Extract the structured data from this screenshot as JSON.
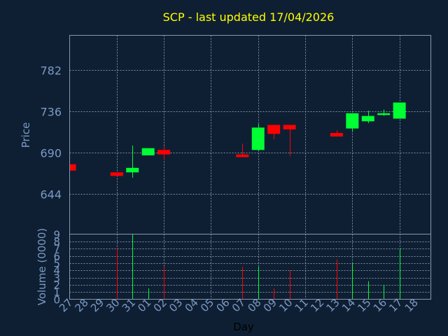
{
  "chart_data": {
    "type": "candlestick",
    "title": "SCP - last updated 17/04/2026",
    "ylabel": "Price",
    "volume_ylabel": "Volume (0000)",
    "xlabel": "Day",
    "price_ticks": [
      644,
      690,
      736,
      782
    ],
    "volume_ticks": [
      0,
      1,
      2,
      3,
      4,
      5,
      6,
      7,
      8,
      9
    ],
    "ylim": [
      599,
      821
    ],
    "volume_ylim": [
      0,
      9
    ],
    "x_ticks": [
      "27",
      "28",
      "29",
      "30",
      "31",
      "01",
      "02",
      "03",
      "04",
      "05",
      "06",
      "07",
      "08",
      "09",
      "10",
      "11",
      "12",
      "13",
      "14",
      "15",
      "16",
      "17",
      "18"
    ],
    "colors": {
      "up": "#00ff33",
      "down": "#ff0000",
      "title": "#ffff00",
      "axis_text": "#7b9ac4"
    },
    "candles": [
      {
        "day": "27",
        "open": 677,
        "high": 677,
        "low": 670,
        "close": 670,
        "volume": 0
      },
      {
        "day": "30",
        "open": 668,
        "high": 668,
        "low": 664,
        "close": 664,
        "volume": 7.0
      },
      {
        "day": "31",
        "open": 668,
        "high": 698,
        "low": 662,
        "close": 673,
        "volume": 9.0
      },
      {
        "day": "01",
        "open": 687,
        "high": 695,
        "low": 687,
        "close": 695,
        "volume": 1.5
      },
      {
        "day": "02",
        "open": 693,
        "high": 697,
        "low": 682,
        "close": 688,
        "volume": 4.5
      },
      {
        "day": "07",
        "open": 688,
        "high": 700,
        "low": 685,
        "close": 685,
        "volume": 4.5
      },
      {
        "day": "08",
        "open": 693,
        "high": 722,
        "low": 692,
        "close": 718,
        "volume": 4.5
      },
      {
        "day": "09",
        "open": 721,
        "high": 721,
        "low": 705,
        "close": 711,
        "volume": 1.5
      },
      {
        "day": "10",
        "open": 721,
        "high": 721,
        "low": 686,
        "close": 716,
        "volume": 4.0
      },
      {
        "day": "13",
        "open": 712,
        "high": 715,
        "low": 708,
        "close": 708,
        "volume": 5.5
      },
      {
        "day": "14",
        "open": 717,
        "high": 734,
        "low": 713,
        "close": 734,
        "volume": 5.0
      },
      {
        "day": "15",
        "open": 725,
        "high": 737,
        "low": 723,
        "close": 731,
        "volume": 2.5
      },
      {
        "day": "16",
        "open": 732,
        "high": 738,
        "low": 731,
        "close": 734,
        "volume": 2.0
      },
      {
        "day": "17",
        "open": 728,
        "high": 746,
        "low": 728,
        "close": 746,
        "volume": 7.0
      }
    ]
  }
}
